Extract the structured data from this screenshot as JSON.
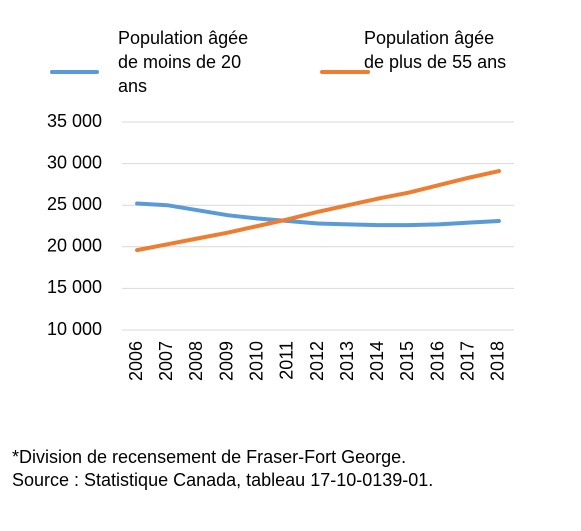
{
  "chart_data": {
    "type": "line",
    "categories": [
      "2006",
      "2007",
      "2008",
      "2009",
      "2010",
      "2011",
      "2012",
      "2013",
      "2014",
      "2015",
      "2016",
      "2017",
      "2018"
    ],
    "series": [
      {
        "name": "Population âgée de moins de 20 ans",
        "color": "#5b9bd5",
        "values": [
          25200,
          25000,
          24400,
          23800,
          23400,
          23100,
          22800,
          22700,
          22600,
          22600,
          22700,
          22900,
          23100
        ]
      },
      {
        "name": "Population âgée de plus de 55 ans",
        "color": "#ed7d31",
        "values": [
          19600,
          20300,
          21000,
          21700,
          22500,
          23300,
          24200,
          25000,
          25800,
          26500,
          27400,
          28300,
          29100
        ]
      }
    ],
    "ylim": [
      10000,
      35000
    ],
    "yticks": [
      {
        "value": 10000,
        "label": "10 000"
      },
      {
        "value": 15000,
        "label": "15 000"
      },
      {
        "value": 20000,
        "label": "20 000"
      },
      {
        "value": 25000,
        "label": "25 000"
      },
      {
        "value": 30000,
        "label": "30 000"
      },
      {
        "value": 35000,
        "label": "35 000"
      }
    ],
    "grid": true,
    "legend": "top",
    "notes": [
      "*Division de recensement de Fraser-Fort George.",
      "Source : Statistique Canada, tableau 17-10-0139-01."
    ]
  }
}
